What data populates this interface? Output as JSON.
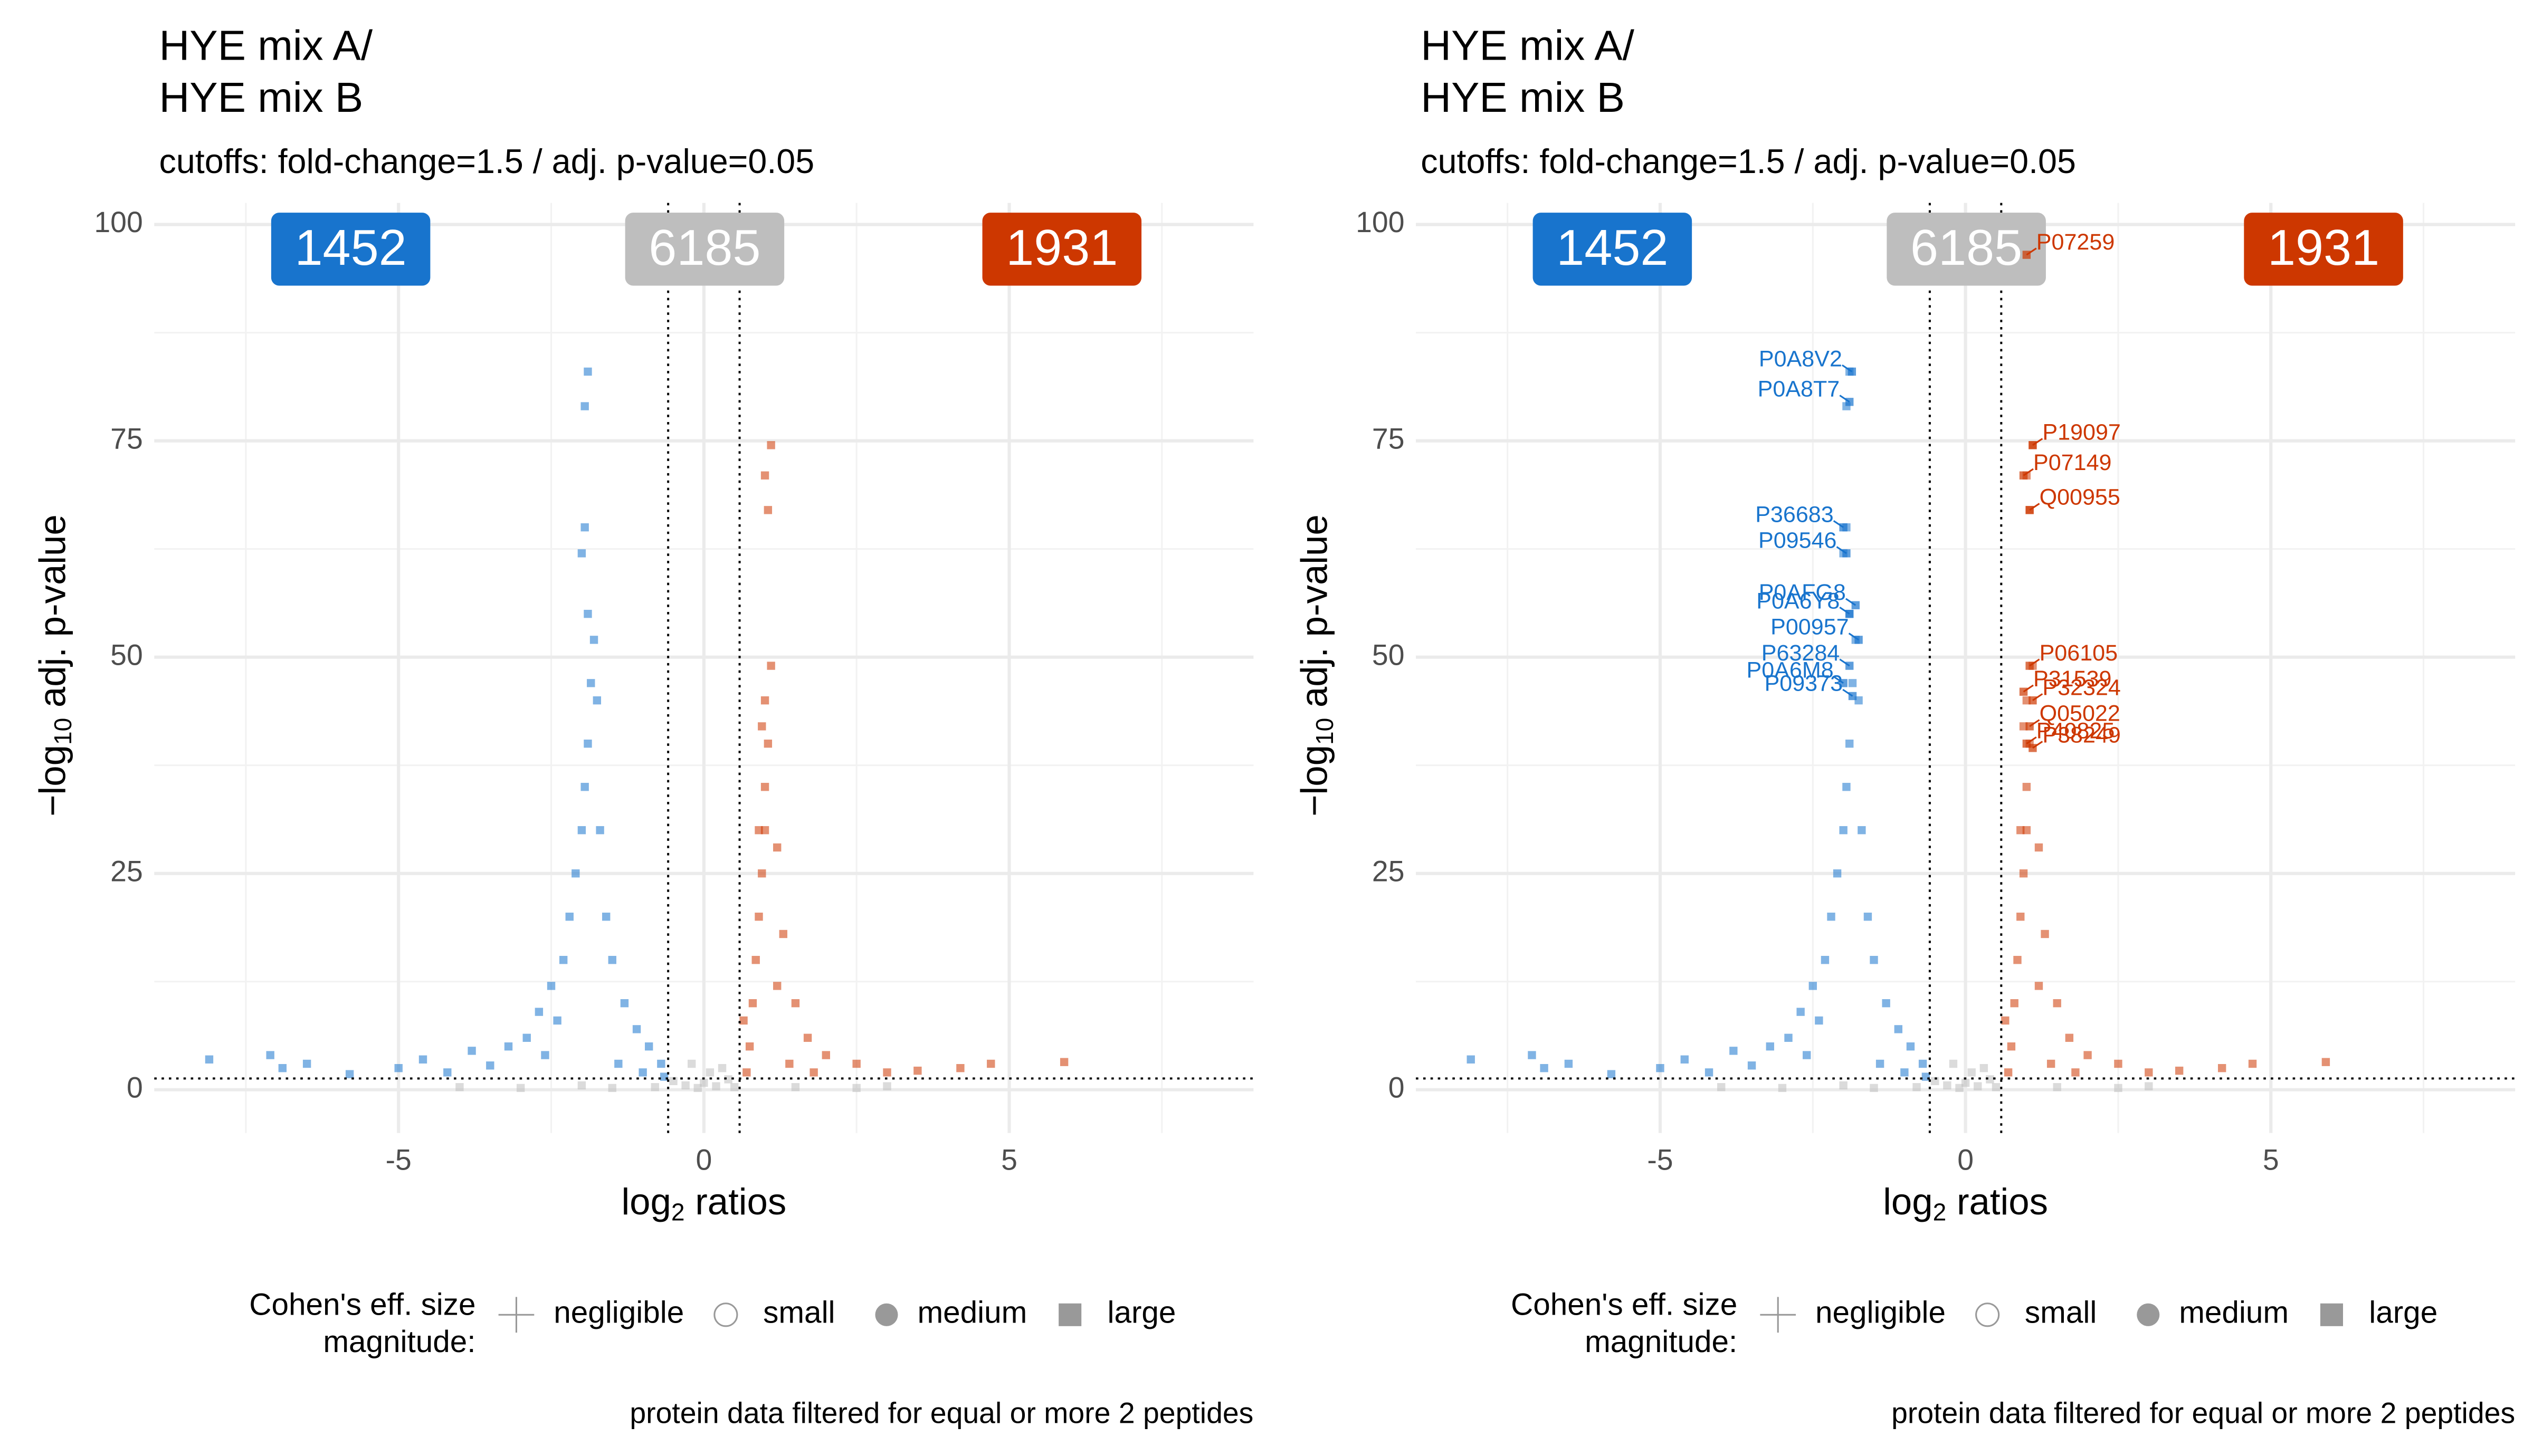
{
  "chart_data": [
    {
      "type": "scatter",
      "title": [
        "HYE mix A/",
        "HYE mix B"
      ],
      "subtitle": "cutoffs: fold-change=1.5 / adj. p-value=0.05",
      "x_label": [
        "log",
        "2",
        " ratios"
      ],
      "y_label": [
        "−log",
        "10",
        " adj. p-value"
      ],
      "xlim": [
        -9,
        9
      ],
      "ylim": [
        -5,
        102.5
      ],
      "xticks": [
        -5,
        0,
        5
      ],
      "yticks": [
        0,
        25,
        50,
        75,
        100
      ],
      "x_minor_ticks": [
        -7.5,
        -2.5,
        2.5,
        7.5
      ],
      "y_minor_ticks": [
        12.5,
        37.5,
        62.5,
        87.5
      ],
      "grid": true,
      "vlines": [
        -0.585,
        0.585
      ],
      "hline": 1.301,
      "count_boxes": [
        {
          "value": 1452,
          "color": "#1874cd"
        },
        {
          "value": 6185,
          "color": "#bebebe"
        },
        {
          "value": 1931,
          "color": "#cd3700"
        }
      ],
      "series": [
        {
          "color": "#bebebe",
          "x": [
            -0.5,
            -0.3,
            -0.1,
            0,
            0.2,
            0.4,
            0.5,
            -0.8,
            -1.5,
            -2,
            1.5,
            2.5,
            3,
            -3,
            0.1,
            -0.2,
            0.3,
            -4
          ],
          "y": [
            1,
            0.5,
            0.2,
            0.8,
            0.4,
            1.2,
            0.3,
            0.3,
            0.2,
            0.5,
            0.3,
            0.2,
            0.4,
            0.2,
            2,
            3,
            2.5,
            0.3
          ]
        },
        {
          "color": "#1874cd",
          "x": [
            -8.1,
            -7.1,
            -6.9,
            -6.5,
            -5.8,
            -5,
            -4.6,
            -4.2,
            -3.8,
            -3.5,
            -3.2,
            -2.9,
            -2.7,
            -2.5,
            -2.3,
            -2.2,
            -2.1,
            -2,
            -1.95,
            -1.9,
            -1.85,
            -1.9,
            -2,
            -1.95,
            -1.95,
            -1.9,
            -1.8,
            -1.75,
            -1.7,
            -1.6,
            -1.5,
            -1.3,
            -1.1,
            -0.9,
            -0.7,
            -2.4,
            -2.6,
            -1.4,
            -1,
            -0.65
          ],
          "y": [
            3.5,
            4,
            2.5,
            3,
            1.8,
            2.5,
            3.5,
            2,
            4.5,
            2.8,
            5,
            6,
            9,
            12,
            15,
            20,
            25,
            30,
            35,
            40,
            47,
            55,
            62,
            65,
            79,
            83,
            52,
            45,
            30,
            20,
            15,
            10,
            7,
            5,
            3,
            8,
            4,
            3,
            2,
            1.5
          ]
        },
        {
          "color": "#cd3700",
          "x": [
            0.7,
            0.75,
            0.8,
            0.85,
            0.9,
            0.95,
            1,
            1,
            1.05,
            1,
            1.1,
            0.95,
            1.05,
            1,
            1.1,
            1.2,
            1.3,
            1.5,
            1.7,
            2,
            2.5,
            3,
            3.5,
            4.2,
            4.7,
            5.9,
            1.4,
            1.8,
            0.65,
            1.2,
            0.9
          ],
          "y": [
            2,
            5,
            10,
            15,
            20,
            25,
            30,
            35,
            40,
            45,
            49,
            42,
            67,
            71,
            74.5,
            28,
            18,
            10,
            6,
            4,
            3,
            2,
            2.2,
            2.5,
            3,
            3.2,
            3,
            2,
            8,
            12,
            30
          ]
        }
      ],
      "legend": {
        "title": [
          "Cohen's eff. size",
          "magnitude:"
        ],
        "entries": [
          "negligible",
          "small",
          "medium",
          "large"
        ],
        "position": "bottom"
      },
      "caption": "protein data filtered for equal or more 2 peptides"
    },
    {
      "type": "scatter",
      "title": [
        "HYE mix A/",
        "HYE mix B"
      ],
      "subtitle": "cutoffs: fold-change=1.5 / adj. p-value=0.05",
      "x_label": [
        "log",
        "2",
        " ratios"
      ],
      "y_label": [
        "−log",
        "10",
        " adj. p-value"
      ],
      "xlim": [
        -9,
        9
      ],
      "ylim": [
        -5,
        102.5
      ],
      "xticks": [
        -5,
        0,
        5
      ],
      "yticks": [
        0,
        25,
        50,
        75,
        100
      ],
      "x_minor_ticks": [
        -7.5,
        -2.5,
        2.5,
        7.5
      ],
      "y_minor_ticks": [
        12.5,
        37.5,
        62.5,
        87.5
      ],
      "grid": true,
      "vlines": [
        -0.585,
        0.585
      ],
      "hline": 1.301,
      "count_boxes": [
        {
          "value": 1452,
          "color": "#1874cd"
        },
        {
          "value": 6185,
          "color": "#bebebe"
        },
        {
          "value": 1931,
          "color": "#cd3700"
        }
      ],
      "series": [
        {
          "color": "#bebebe",
          "x": [
            -0.5,
            -0.3,
            -0.1,
            0,
            0.2,
            0.4,
            0.5,
            -0.8,
            -1.5,
            -2,
            1.5,
            2.5,
            3,
            -3,
            0.1,
            -0.2,
            0.3,
            -4
          ],
          "y": [
            1,
            0.5,
            0.2,
            0.8,
            0.4,
            1.2,
            0.3,
            0.3,
            0.2,
            0.5,
            0.3,
            0.2,
            0.4,
            0.2,
            2,
            3,
            2.5,
            0.3
          ]
        },
        {
          "color": "#1874cd",
          "x": [
            -8.1,
            -7.1,
            -6.9,
            -6.5,
            -5.8,
            -5,
            -4.6,
            -4.2,
            -3.8,
            -3.5,
            -3.2,
            -2.9,
            -2.7,
            -2.5,
            -2.3,
            -2.2,
            -2.1,
            -2,
            -1.95,
            -1.9,
            -1.85,
            -1.9,
            -2,
            -1.95,
            -1.95,
            -1.9,
            -1.8,
            -1.75,
            -1.7,
            -1.6,
            -1.5,
            -1.3,
            -1.1,
            -0.9,
            -0.7,
            -2.4,
            -2.6,
            -1.4,
            -1,
            -0.65
          ],
          "y": [
            3.5,
            4,
            2.5,
            3,
            1.8,
            2.5,
            3.5,
            2,
            4.5,
            2.8,
            5,
            6,
            9,
            12,
            15,
            20,
            25,
            30,
            35,
            40,
            47,
            55,
            62,
            65,
            79,
            83,
            52,
            45,
            30,
            20,
            15,
            10,
            7,
            5,
            3,
            8,
            4,
            3,
            2,
            1.5
          ]
        },
        {
          "color": "#cd3700",
          "x": [
            0.7,
            0.75,
            0.8,
            0.85,
            0.9,
            0.95,
            1,
            1,
            1.05,
            1,
            1.1,
            0.95,
            1.05,
            1,
            1.1,
            1.2,
            1.3,
            1.5,
            1.7,
            2,
            2.5,
            3,
            3.5,
            4.2,
            4.7,
            5.9,
            1.4,
            1.8,
            0.65,
            1.2,
            0.9
          ],
          "y": [
            2,
            5,
            10,
            15,
            20,
            25,
            30,
            35,
            40,
            45,
            49,
            42,
            67,
            71,
            74.5,
            28,
            18,
            10,
            6,
            4,
            3,
            2,
            2.2,
            2.5,
            3,
            3.2,
            3,
            2,
            8,
            12,
            30
          ]
        }
      ],
      "point_labels": [
        {
          "text": "P0A8V2",
          "x": -1.86,
          "y": 83,
          "color": "#1874cd"
        },
        {
          "text": "P0A8T7",
          "x": -1.9,
          "y": 79.5,
          "color": "#1874cd"
        },
        {
          "text": "P36683",
          "x": -2,
          "y": 65,
          "color": "#1874cd"
        },
        {
          "text": "P09546",
          "x": -1.95,
          "y": 62,
          "color": "#1874cd"
        },
        {
          "text": "P0AFG8",
          "x": -1.8,
          "y": 56,
          "color": "#1874cd"
        },
        {
          "text": "P0A6Y8",
          "x": -1.9,
          "y": 55,
          "color": "#1874cd"
        },
        {
          "text": "P00957",
          "x": -1.75,
          "y": 52,
          "color": "#1874cd"
        },
        {
          "text": "P63284",
          "x": -1.9,
          "y": 49,
          "color": "#1874cd"
        },
        {
          "text": "P0A6M8",
          "x": -2,
          "y": 47,
          "color": "#1874cd"
        },
        {
          "text": "P09373",
          "x": -1.85,
          "y": 45.5,
          "color": "#1874cd"
        },
        {
          "text": "P07259",
          "x": 1,
          "y": 96.5,
          "color": "#cd3700"
        },
        {
          "text": "P19097",
          "x": 1.1,
          "y": 74.5,
          "color": "#cd3700"
        },
        {
          "text": "P07149",
          "x": 0.95,
          "y": 71,
          "color": "#cd3700"
        },
        {
          "text": "Q00955",
          "x": 1.05,
          "y": 67,
          "color": "#cd3700"
        },
        {
          "text": "P06105",
          "x": 1.05,
          "y": 49,
          "color": "#cd3700"
        },
        {
          "text": "P31539",
          "x": 0.95,
          "y": 46,
          "color": "#cd3700"
        },
        {
          "text": "P32324",
          "x": 1.1,
          "y": 45,
          "color": "#cd3700"
        },
        {
          "text": "Q05022",
          "x": 1.05,
          "y": 42,
          "color": "#cd3700"
        },
        {
          "text": "P40825",
          "x": 1,
          "y": 40,
          "color": "#cd3700"
        },
        {
          "text": "P38249",
          "x": 1.1,
          "y": 39.5,
          "color": "#cd3700"
        }
      ],
      "legend": {
        "title": [
          "Cohen's eff. size",
          "magnitude:"
        ],
        "entries": [
          "negligible",
          "small",
          "medium",
          "large"
        ],
        "position": "bottom"
      },
      "caption": "protein data filtered for equal or more 2 peptides"
    }
  ]
}
